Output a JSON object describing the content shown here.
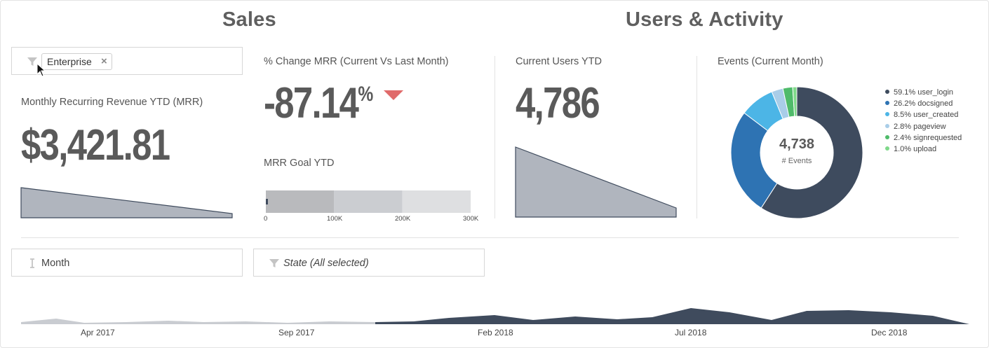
{
  "sections": {
    "sales_title": "Sales",
    "users_title": "Users & Activity"
  },
  "filters": {
    "segment_chip": "Enterprise",
    "chip_remove": "×",
    "month_control": "Month",
    "state_filter": "State (All selected)"
  },
  "mrr": {
    "title": "Monthly Recurring Revenue YTD (MRR)",
    "value": "$3,421.81"
  },
  "change_mrr": {
    "title": "% Change MRR (Current Vs Last Month)",
    "value": "-87.14",
    "unit": "%",
    "trend": "down",
    "trend_color": "#e06a6a"
  },
  "mrr_goal": {
    "title": "MRR Goal YTD",
    "current_value_k": 1,
    "max_k": 300,
    "band_edges_k": [
      100,
      200,
      300
    ],
    "ticks": [
      "0",
      "100K",
      "200K",
      "300K"
    ]
  },
  "users": {
    "title": "Current Users YTD",
    "value": "4,786"
  },
  "events": {
    "title": "Events (Current Month)",
    "center_value": "4,738",
    "center_label": "# Events",
    "chart_data": {
      "type": "pie",
      "slices": [
        {
          "label": "59.1% user_login",
          "name": "user_login",
          "value": 59.1,
          "color": "#3e4b5e"
        },
        {
          "label": "26.2% docsigned",
          "name": "docsigned",
          "value": 26.2,
          "color": "#2e73b3"
        },
        {
          "label": "8.5% user_created",
          "name": "user_created",
          "value": 8.5,
          "color": "#4cb5e6"
        },
        {
          "label": "2.8% pageview",
          "name": "pageview",
          "value": 2.8,
          "color": "#a9cde8"
        },
        {
          "label": "2.4% signrequested",
          "name": "signrequested",
          "value": 2.4,
          "color": "#4fbb6a"
        },
        {
          "label": "1.0% upload",
          "name": "upload",
          "value": 1.0,
          "color": "#7fd98a"
        }
      ]
    }
  },
  "timeline": {
    "labels": [
      "Apr 2017",
      "Sep 2017",
      "Feb 2018",
      "Jul 2018",
      "Dec 2018"
    ],
    "colors": {
      "unselected": "#c9ccd1",
      "selected": "#3f4b5d"
    }
  },
  "colors": {
    "sparkline_fill": "#b0b5be",
    "sparkline_stroke": "#3f4b5d",
    "goal_bands": [
      "#b9babd",
      "#cbcdd1",
      "#dedfe1"
    ],
    "goal_marker": "#3f4b5d"
  }
}
